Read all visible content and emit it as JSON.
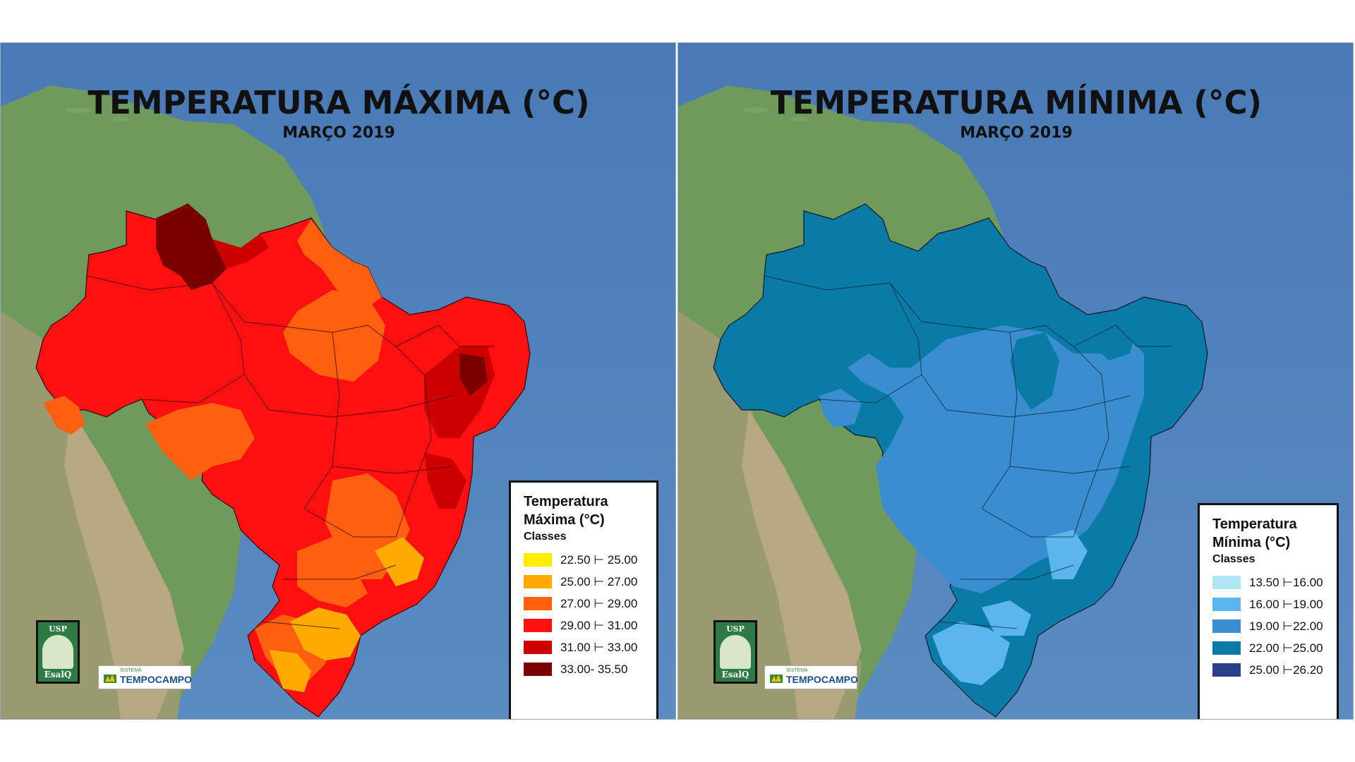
{
  "maps": [
    {
      "title": "TEMPERATURA MÁXIMA (°C)",
      "subtitle": "MARÇO 2019",
      "legend": {
        "title": "Temperatura Máxima (°C)",
        "classes_label": "Classes",
        "items": [
          {
            "label": "22.50 ⊢ 25.00",
            "color": "#ffee00"
          },
          {
            "label": "25.00 ⊢ 27.00",
            "color": "#ffaa00"
          },
          {
            "label": "27.00 ⊢ 29.00",
            "color": "#ff6010"
          },
          {
            "label": "29.00 ⊢ 31.00",
            "color": "#ff1010"
          },
          {
            "label": "31.00 ⊢ 33.00",
            "color": "#cc0000"
          },
          {
            "label": "33.00- 35.50",
            "color": "#7a0000"
          }
        ]
      }
    },
    {
      "title": "TEMPERATURA MÍNIMA (°C)",
      "subtitle": "MARÇO 2019",
      "legend": {
        "title": "Temperatura Mínima (°C)",
        "classes_label": "Classes",
        "items": [
          {
            "label": "13.50 ⊢16.00",
            "color": "#aee6f4"
          },
          {
            "label": "16.00 ⊢19.00",
            "color": "#5cb6ee"
          },
          {
            "label": "19.00 ⊢22.00",
            "color": "#3a8ed0"
          },
          {
            "label": "22.00 ⊢25.00",
            "color": "#0a7aa6"
          },
          {
            "label": "25.00 ⊢26.20",
            "color": "#2a3e8a"
          }
        ]
      }
    }
  ],
  "logos": {
    "esalq_top": "USP",
    "esalq_name": "EsalQ",
    "tc_small": "SISTEMA",
    "tc_name": "TEMPOCAMPO"
  }
}
